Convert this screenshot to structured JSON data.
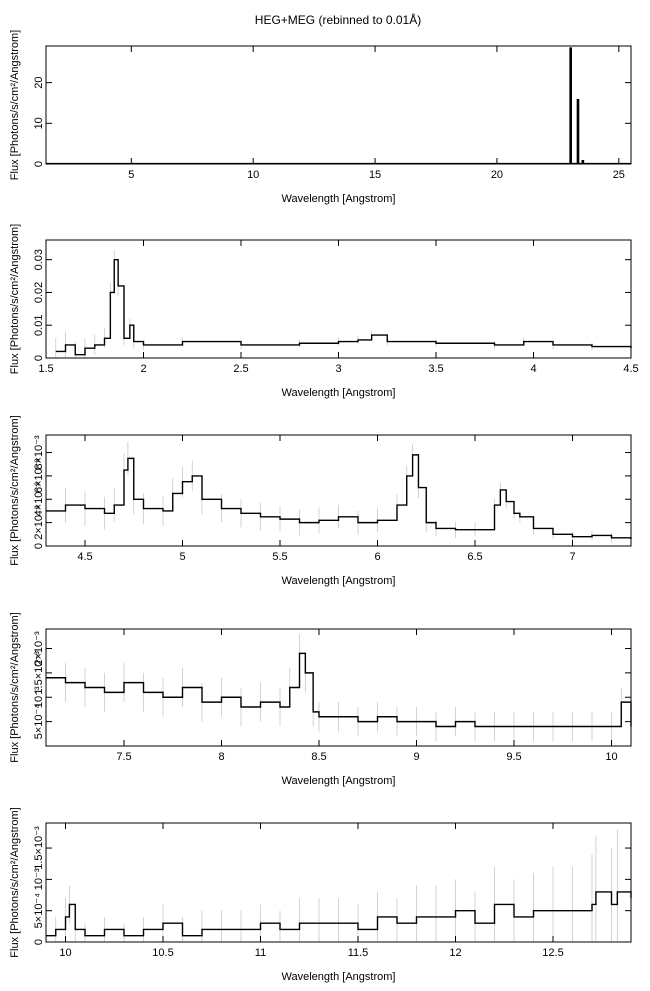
{
  "title": "HEG+MEG (rebinned to 0.01Å)",
  "chart_data": [
    {
      "type": "line",
      "xlabel": "Wavelength [Angstrom]",
      "ylabel": "Flux [Photons/s/cm²/Angstrom]",
      "xlim": [
        1.5,
        25.5
      ],
      "ylim": [
        0,
        29
      ],
      "x_ticks": [
        5,
        10,
        15,
        20,
        25
      ],
      "x_tick_labels": [
        "5",
        "10",
        "15",
        "20",
        "25"
      ],
      "y_ticks": [
        0,
        10,
        20
      ],
      "y_tick_labels": [
        "0",
        "10",
        "20"
      ],
      "grid": false,
      "series": [
        {
          "x": [
            1.5,
            22.95,
            23.0,
            23.05,
            23.25,
            23.3,
            23.35,
            23.45,
            23.5,
            23.55,
            25.5
          ],
          "y": [
            0.1,
            0.1,
            28.5,
            0.1,
            0.1,
            15.8,
            0.1,
            0.1,
            0.8,
            0.1,
            0.1
          ],
          "err": []
        }
      ]
    },
    {
      "type": "line",
      "xlabel": "Wavelength [Angstrom]",
      "ylabel": "Flux [Photons/s/cm²/Angstrom]",
      "xlim": [
        1.5,
        4.5
      ],
      "ylim": [
        0,
        0.036
      ],
      "x_ticks": [
        1.5,
        2,
        2.5,
        3,
        3.5,
        4,
        4.5
      ],
      "x_tick_labels": [
        "1.5",
        "2",
        "2.5",
        "3",
        "3.5",
        "4",
        "4.5"
      ],
      "y_ticks": [
        0,
        0.01,
        0.02,
        0.03
      ],
      "y_tick_labels": [
        "0",
        "0.01",
        "0.02",
        "0.03"
      ],
      "grid": false,
      "series": [
        {
          "x": [
            1.55,
            1.6,
            1.65,
            1.7,
            1.75,
            1.8,
            1.83,
            1.85,
            1.87,
            1.9,
            1.93,
            1.95,
            2.0,
            2.2,
            2.5,
            2.8,
            3.0,
            3.1,
            3.17,
            3.25,
            3.5,
            3.8,
            3.95,
            4.1,
            4.3,
            4.5
          ],
          "y": [
            0.002,
            0.004,
            0.001,
            0.003,
            0.004,
            0.006,
            0.02,
            0.03,
            0.022,
            0.006,
            0.01,
            0.005,
            0.004,
            0.005,
            0.004,
            0.0045,
            0.005,
            0.0055,
            0.007,
            0.005,
            0.0045,
            0.004,
            0.005,
            0.004,
            0.0035,
            0.003
          ],
          "err": [
            0.004,
            0.004,
            0.004,
            0.003,
            0.003,
            0.003,
            0.003,
            0.003,
            0.003,
            0.002,
            0.002,
            0.002,
            0.0015,
            0.0012,
            0.0012,
            0.0012,
            0.0012,
            0.0012,
            0.0012,
            0.0012,
            0.0012,
            0.0012,
            0.0012,
            0.0012,
            0.0012,
            0.0012
          ]
        }
      ]
    },
    {
      "type": "line",
      "xlabel": "Wavelength [Angstrom]",
      "ylabel": "Flux [Photons/s/cm²/Angstrom]",
      "xlim": [
        4.3,
        7.3
      ],
      "ylim": [
        0,
        0.0095
      ],
      "x_ticks": [
        4.5,
        5,
        5.5,
        6,
        6.5,
        7
      ],
      "x_tick_labels": [
        "4.5",
        "5",
        "5.5",
        "6",
        "6.5",
        "7"
      ],
      "y_ticks": [
        0,
        0.002,
        0.004,
        0.006,
        0.008
      ],
      "y_tick_labels": [
        "0",
        "2×10⁻³",
        "4×10⁻³",
        "6×10⁻³",
        "8×10⁻³"
      ],
      "grid": false,
      "series": [
        {
          "x": [
            4.3,
            4.4,
            4.5,
            4.6,
            4.65,
            4.7,
            4.72,
            4.75,
            4.8,
            4.9,
            4.95,
            5.0,
            5.05,
            5.1,
            5.2,
            5.3,
            5.4,
            5.5,
            5.6,
            5.7,
            5.8,
            5.9,
            6.0,
            6.1,
            6.15,
            6.18,
            6.21,
            6.25,
            6.3,
            6.4,
            6.5,
            6.6,
            6.63,
            6.66,
            6.7,
            6.73,
            6.8,
            6.9,
            7.0,
            7.1,
            7.2,
            7.3
          ],
          "y": [
            0.003,
            0.0035,
            0.0032,
            0.0028,
            0.0035,
            0.0065,
            0.0075,
            0.004,
            0.0032,
            0.003,
            0.0045,
            0.0055,
            0.006,
            0.004,
            0.0032,
            0.0028,
            0.0025,
            0.0023,
            0.002,
            0.0022,
            0.0025,
            0.002,
            0.0022,
            0.0035,
            0.006,
            0.0078,
            0.005,
            0.002,
            0.0015,
            0.0014,
            0.0014,
            0.0035,
            0.0048,
            0.0038,
            0.0028,
            0.0025,
            0.0015,
            0.001,
            0.0008,
            0.0009,
            0.0007,
            0.0006
          ],
          "err": [
            0.0015,
            0.0015,
            0.0015,
            0.0014,
            0.0014,
            0.0014,
            0.0014,
            0.0013,
            0.0013,
            0.0013,
            0.0013,
            0.0013,
            0.0013,
            0.0013,
            0.0012,
            0.0012,
            0.0012,
            0.0011,
            0.0011,
            0.0011,
            0.001,
            0.001,
            0.001,
            0.0009,
            0.0009,
            0.0009,
            0.0009,
            0.0008,
            0.0007,
            0.0007,
            0.0006,
            0.0006,
            0.0006,
            0.0006,
            0.0005,
            0.0005,
            0.0005,
            0.0004,
            0.0004,
            0.0004,
            0.0004,
            0.0004
          ]
        }
      ]
    },
    {
      "type": "line",
      "xlabel": "Wavelength [Angstrom]",
      "ylabel": "Flux [Photons/s/cm²/Angstrom]",
      "xlim": [
        7.1,
        10.1
      ],
      "ylim": [
        0,
        0.0024
      ],
      "x_ticks": [
        7.5,
        8,
        8.5,
        9,
        9.5,
        10
      ],
      "x_tick_labels": [
        "7.5",
        "8",
        "8.5",
        "9",
        "9.5",
        "10"
      ],
      "y_ticks": [
        0.0005,
        0.001,
        0.0015,
        0.002
      ],
      "y_tick_labels": [
        "5×10⁻⁴",
        "10⁻³",
        "1.5×10⁻³",
        "2×10⁻³"
      ],
      "grid": false,
      "series": [
        {
          "x": [
            7.1,
            7.2,
            7.3,
            7.4,
            7.5,
            7.6,
            7.7,
            7.8,
            7.9,
            8.0,
            8.1,
            8.2,
            8.3,
            8.35,
            8.4,
            8.43,
            8.47,
            8.5,
            8.6,
            8.7,
            8.8,
            8.9,
            9.0,
            9.1,
            9.2,
            9.3,
            9.4,
            9.5,
            9.6,
            9.7,
            9.8,
            9.9,
            10.0,
            10.05,
            10.1
          ],
          "y": [
            0.0014,
            0.0013,
            0.0012,
            0.0011,
            0.0013,
            0.0011,
            0.001,
            0.0012,
            0.0009,
            0.001,
            0.0008,
            0.0009,
            0.0008,
            0.0012,
            0.0019,
            0.0015,
            0.0007,
            0.0006,
            0.0006,
            0.0005,
            0.0006,
            0.0005,
            0.0005,
            0.0004,
            0.0005,
            0.0004,
            0.0004,
            0.0004,
            0.0004,
            0.0004,
            0.0004,
            0.0004,
            0.0004,
            0.0009,
            0.0004
          ],
          "err": [
            0.0004,
            0.0004,
            0.0004,
            0.0004,
            0.0004,
            0.0004,
            0.0004,
            0.0004,
            0.0004,
            0.0004,
            0.0004,
            0.0004,
            0.0004,
            0.0004,
            0.0004,
            0.0004,
            0.0003,
            0.0003,
            0.0003,
            0.0003,
            0.0003,
            0.0003,
            0.0003,
            0.0003,
            0.0003,
            0.0003,
            0.0003,
            0.0003,
            0.0003,
            0.0003,
            0.0003,
            0.0003,
            0.0003,
            0.0003,
            0.0003
          ]
        }
      ]
    },
    {
      "type": "line",
      "xlabel": "Wavelength [Angstrom]",
      "ylabel": "Flux [Photons/s/cm²/Angstrom]",
      "xlim": [
        9.9,
        12.9
      ],
      "ylim": [
        0,
        0.0019
      ],
      "x_ticks": [
        10,
        10.5,
        11,
        11.5,
        12,
        12.5
      ],
      "x_tick_labels": [
        "10",
        "10.5",
        "11",
        "11.5",
        "12",
        "12.5"
      ],
      "y_ticks": [
        0,
        0.0005,
        0.001,
        0.0015
      ],
      "y_tick_labels": [
        "0",
        "5×10⁻⁴",
        "10⁻³",
        "1.5×10⁻³"
      ],
      "grid": false,
      "series": [
        {
          "x": [
            9.9,
            9.95,
            10.0,
            10.02,
            10.05,
            10.1,
            10.2,
            10.3,
            10.4,
            10.5,
            10.6,
            10.7,
            10.8,
            10.9,
            11.0,
            11.1,
            11.2,
            11.3,
            11.4,
            11.5,
            11.6,
            11.7,
            11.8,
            11.9,
            12.0,
            12.1,
            12.2,
            12.3,
            12.4,
            12.5,
            12.6,
            12.7,
            12.72,
            12.8,
            12.83,
            12.9
          ],
          "y": [
            0.0001,
            0.0002,
            0.0004,
            0.0006,
            0.0002,
            0.0001,
            0.0002,
            0.0001,
            0.0002,
            0.0003,
            0.0001,
            0.0002,
            0.0002,
            0.0002,
            0.0003,
            0.0002,
            0.0003,
            0.0003,
            0.0003,
            0.0002,
            0.0004,
            0.0003,
            0.0004,
            0.0004,
            0.0005,
            0.0003,
            0.0006,
            0.0004,
            0.0005,
            0.0005,
            0.0005,
            0.0006,
            0.0008,
            0.0006,
            0.0008,
            0.0007
          ],
          "err": [
            0.0002,
            0.0002,
            0.0003,
            0.0003,
            0.0002,
            0.0002,
            0.0002,
            0.0002,
            0.0002,
            0.0003,
            0.0003,
            0.0003,
            0.0003,
            0.0003,
            0.0003,
            0.0003,
            0.0004,
            0.0004,
            0.0004,
            0.0004,
            0.0004,
            0.0004,
            0.0005,
            0.0005,
            0.0005,
            0.0005,
            0.0006,
            0.0006,
            0.0006,
            0.0007,
            0.0007,
            0.0008,
            0.0009,
            0.0009,
            0.001,
            0.001
          ]
        }
      ]
    }
  ]
}
